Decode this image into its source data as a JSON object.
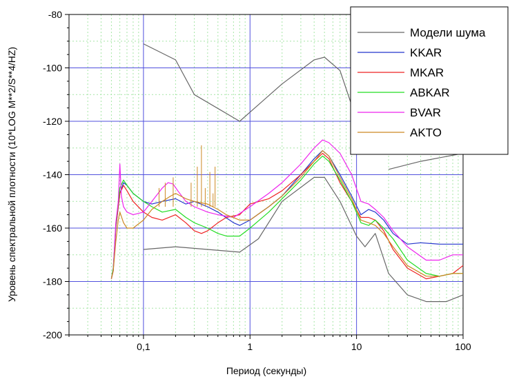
{
  "chart_data": {
    "type": "line",
    "title": "",
    "xlabel": "Период (секунды)",
    "ylabel": "Уровень спектральной плотности (10*LOG M**2/S**4/HZ)",
    "x_scale": "log",
    "xlim": [
      0.02,
      100
    ],
    "ylim": [
      -200,
      -80
    ],
    "grid": true,
    "legend_position": "top-right",
    "x_tick_labels": [
      {
        "value": 0.1,
        "label": "0,1"
      },
      {
        "value": 1,
        "label": "1"
      },
      {
        "value": 10,
        "label": "10"
      },
      {
        "value": 100,
        "label": "100"
      }
    ],
    "y_tick_labels": [
      {
        "value": -80,
        "label": "-80"
      },
      {
        "value": -100,
        "label": "-100"
      },
      {
        "value": -120,
        "label": "-120"
      },
      {
        "value": -140,
        "label": "-140"
      },
      {
        "value": -160,
        "label": "-160"
      },
      {
        "value": -180,
        "label": "-180"
      },
      {
        "value": -200,
        "label": "-200"
      }
    ],
    "series": [
      {
        "name": "Модели шума",
        "color": "#666666",
        "segments": [
          {
            "x": [
              0.1,
              0.2,
              0.3,
              0.8,
              2.0,
              4.0,
              5.0,
              7.0,
              9.0,
              10.0
            ],
            "y": [
              -91,
              -97,
              -110,
              -120,
              -106,
              -97,
              -96,
              -101,
              -114,
              -116
            ]
          },
          {
            "x": [
              0.1,
              0.2,
              0.8,
              1.2,
              2.0,
              4.0,
              5.0,
              7.0,
              10.0,
              12.0,
              15.0,
              20.0,
              30.0,
              45.0,
              70.0,
              100.0
            ],
            "y": [
              -168,
              -167,
              -169,
              -164,
              -150,
              -141,
              -141,
              -150,
              -163,
              -167,
              -162,
              -177,
              -185,
              -187.5,
              -187.5,
              -185
            ]
          },
          {
            "x": [
              20.0,
              40.0,
              100.0
            ],
            "y": [
              -138,
              -135,
              -132
            ]
          }
        ]
      },
      {
        "name": "KKAR",
        "color": "#2233cc",
        "segments": [
          {
            "x": [
              0.05,
              0.052,
              0.055,
              0.06,
              0.065,
              0.07,
              0.08,
              0.1,
              0.12,
              0.15,
              0.2,
              0.25,
              0.3,
              0.4,
              0.5,
              0.7,
              0.8,
              1.0,
              1.5,
              2.0,
              3.0,
              4.0,
              4.8,
              5.5,
              7.0,
              9.0,
              11.0,
              13.0,
              15.0,
              18.0,
              22.0,
              30.0,
              40.0,
              60.0,
              100.0
            ],
            "y": [
              -179,
              -175,
              -160,
              -147,
              -143,
              -144,
              -147,
              -150,
              -151,
              -150,
              -149,
              -151,
              -150,
              -152,
              -154,
              -158,
              -159,
              -157,
              -152,
              -148,
              -140,
              -134,
              -131,
              -133,
              -140,
              -148,
              -155,
              -153,
              -154,
              -157,
              -162,
              -166,
              -165.5,
              -166,
              -166
            ]
          }
        ]
      },
      {
        "name": "MKAR",
        "color": "#ee2222",
        "segments": [
          {
            "x": [
              0.05,
              0.052,
              0.055,
              0.06,
              0.065,
              0.07,
              0.08,
              0.1,
              0.12,
              0.15,
              0.2,
              0.25,
              0.3,
              0.35,
              0.4,
              0.5,
              0.6,
              0.8,
              1.0,
              1.5,
              2.0,
              3.0,
              4.0,
              4.8,
              5.5,
              7.0,
              9.0,
              11.0,
              13.0,
              15.0,
              18.0,
              22.0,
              30.0,
              45.0,
              60.0,
              80.0,
              100.0
            ],
            "y": [
              -179,
              -176,
              -160,
              -147,
              -144,
              -146,
              -150,
              -154,
              -156,
              -157,
              -155,
              -158,
              -161,
              -162,
              -161,
              -158,
              -156,
              -155,
              -151,
              -149,
              -146,
              -140,
              -135,
              -132,
              -134,
              -143,
              -150,
              -156,
              -156,
              -157,
              -161,
              -168,
              -175,
              -179,
              -178,
              -177,
              -174
            ]
          }
        ]
      },
      {
        "name": "ABKAR",
        "color": "#22dd22",
        "segments": [
          {
            "x": [
              0.05,
              0.052,
              0.055,
              0.06,
              0.065,
              0.07,
              0.08,
              0.1,
              0.12,
              0.15,
              0.2,
              0.25,
              0.3,
              0.4,
              0.5,
              0.6,
              0.8,
              1.0,
              1.5,
              2.0,
              3.0,
              4.0,
              4.8,
              5.5,
              7.0,
              9.0,
              11.0,
              13.0,
              15.0,
              18.0,
              22.0,
              30.0,
              45.0,
              60.0,
              80.0,
              100.0
            ],
            "y": [
              -179,
              -175,
              -159,
              -145,
              -142,
              -144,
              -147,
              -150,
              -152,
              -154,
              -153,
              -156,
              -158,
              -160,
              -162,
              -163,
              -163,
              -160,
              -154,
              -149,
              -142,
              -136,
              -133,
              -135,
              -142,
              -150,
              -158,
              -159,
              -157,
              -160,
              -164,
              -172,
              -177,
              -178,
              -177,
              -177
            ]
          }
        ]
      },
      {
        "name": "BVAR",
        "color": "#ee22ee",
        "segments": [
          {
            "x": [
              0.05,
              0.052,
              0.055,
              0.058,
              0.06,
              0.062,
              0.065,
              0.07,
              0.08,
              0.1,
              0.12,
              0.15,
              0.17,
              0.19,
              0.21,
              0.25,
              0.3,
              0.4,
              0.5,
              0.7,
              1.0,
              1.5,
              2.0,
              3.0,
              4.0,
              4.8,
              5.5,
              7.0,
              9.0,
              11.0,
              13.0,
              15.0,
              18.0,
              22.0,
              30.0,
              45.0,
              60.0,
              80.0,
              100.0
            ],
            "y": [
              -179,
              -176,
              -158,
              -150,
              -136,
              -148,
              -152,
              -154,
              -155,
              -154,
              -150,
              -145,
              -143,
              -143.5,
              -146,
              -150,
              -152,
              -154,
              -155,
              -156,
              -152,
              -147,
              -143,
              -136,
              -130,
              -127,
              -128,
              -132,
              -140,
              -150,
              -151,
              -153,
              -156,
              -161,
              -167,
              -172,
              -172,
              -170,
              -170
            ]
          }
        ]
      },
      {
        "name": "AKTO",
        "color": "#cc8822",
        "segments": [
          {
            "x": [
              0.05,
              0.052,
              0.055,
              0.058,
              0.06,
              0.065,
              0.07,
              0.08,
              0.1,
              0.12,
              0.15,
              0.18,
              0.2,
              0.25,
              0.3,
              0.4,
              0.5,
              0.6,
              0.8,
              1.0,
              1.5,
              2.0,
              3.0,
              4.0,
              4.8,
              5.5,
              7.0,
              9.0,
              11.0,
              13.0,
              15.0,
              18.0,
              22.0,
              30.0,
              45.0,
              60.0,
              80.0,
              100.0
            ],
            "y": [
              -179,
              -176,
              -165,
              -157,
              -154,
              -158,
              -160,
              -160,
              -157,
              -153,
              -150,
              -148,
              -147,
              -149,
              -150,
              -151,
              -153,
              -155,
              -157,
              -157,
              -152,
              -148,
              -141,
              -135,
              -131,
              -133,
              -141,
              -149,
              -157,
              -158,
              -159,
              -162,
              -167,
              -174,
              -178,
              -178,
              -177,
              -177
            ]
          }
        ]
      }
    ],
    "spikes": {
      "series": "AKTO",
      "color": "#cc8822",
      "points": [
        {
          "x": 0.14,
          "y": -145
        },
        {
          "x": 0.16,
          "y": -143
        },
        {
          "x": 0.19,
          "y": -141
        },
        {
          "x": 0.28,
          "y": -143
        },
        {
          "x": 0.32,
          "y": -137
        },
        {
          "x": 0.35,
          "y": -129
        },
        {
          "x": 0.38,
          "y": -145
        },
        {
          "x": 0.42,
          "y": -139
        },
        {
          "x": 0.45,
          "y": -147
        },
        {
          "x": 0.47,
          "y": -137
        }
      ]
    }
  }
}
